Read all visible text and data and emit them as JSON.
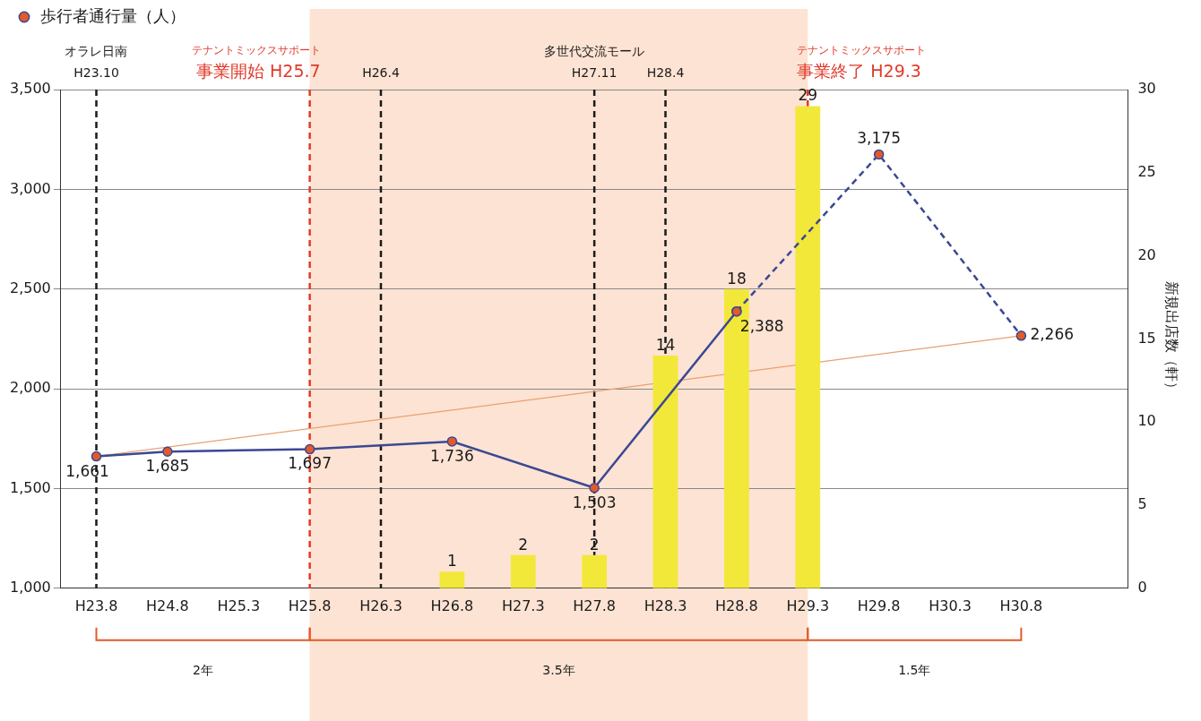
{
  "chart_data": {
    "type": "bar",
    "categories": [
      "H23.8",
      "H24.8",
      "H25.3",
      "H25.8",
      "H26.3",
      "H26.8",
      "H27.3",
      "H27.8",
      "H28.3",
      "H28.8",
      "H29.3",
      "H29.8",
      "H30.3",
      "H30.8",
      null
    ],
    "ylim": [
      1000,
      3500
    ],
    "yticks": [
      {
        "value": 1000,
        "label": "1,000"
      },
      {
        "value": 1500,
        "label": "1,500"
      },
      {
        "value": 2000,
        "label": "2,000"
      },
      {
        "value": 2500,
        "label": "2,500"
      },
      {
        "value": 3000,
        "label": "3,000"
      },
      {
        "value": 3500,
        "label": "3,500"
      }
    ],
    "y2lim": [
      0,
      30
    ],
    "y2ticks": [
      0,
      5,
      10,
      15,
      20,
      25,
      30
    ],
    "y2label": "新規出店数（軒）",
    "grid": "y",
    "legend": "top left",
    "data_labels": true,
    "marker": "circle",
    "series": [
      {
        "axis": "y2",
        "color": "#f2e83a",
        "values": [
          null,
          null,
          null,
          null,
          null,
          1,
          2,
          2,
          14,
          18,
          29,
          null,
          null,
          null,
          null
        ]
      },
      {
        "type": "line",
        "name": "歩行者通行量（人）",
        "color": "#3b4894",
        "values": [
          1661,
          1685,
          null,
          1697,
          null,
          1736,
          null,
          1503,
          null,
          2388,
          null,
          null,
          null,
          null,
          null
        ],
        "value_labels": [
          "1,661",
          "1,685",
          null,
          "1,697",
          null,
          "1,736",
          null,
          "1,503",
          null,
          "2,388",
          null,
          null,
          null,
          null,
          null
        ]
      },
      {
        "type": "line",
        "color": "#3b4894",
        "line_style": "dashed",
        "values": [
          null,
          null,
          null,
          null,
          null,
          null,
          null,
          null,
          null,
          2388,
          null,
          3175,
          null,
          2266,
          null
        ],
        "value_labels": [
          null,
          null,
          null,
          null,
          null,
          null,
          null,
          null,
          null,
          null,
          null,
          "3,175",
          null,
          "2,266",
          null
        ]
      },
      {
        "type": "line",
        "color": "#e8a070",
        "marker": "none",
        "values": [
          1661,
          null,
          null,
          null,
          null,
          null,
          null,
          null,
          null,
          null,
          null,
          null,
          null,
          2266,
          null
        ],
        "value_labels": [
          null,
          null,
          null,
          null,
          null,
          null,
          null,
          null,
          null,
          null,
          null,
          null,
          null,
          null,
          null
        ]
      }
    ],
    "ref_lines": [
      {
        "axis": "x",
        "value": "H23.8",
        "label": "オラレ日南\nH23.10",
        "color": "#1a1a1a",
        "line_style": "dashed"
      },
      {
        "axis": "x",
        "value": "H25.8",
        "label": "事業開始 H25.7",
        "color": "#e03a2a",
        "line_style": "dashed"
      },
      {
        "axis": "x",
        "value": "H26.3",
        "label": "H26.4",
        "color": "#1a1a1a",
        "line_style": "dashed"
      },
      {
        "axis": "x",
        "value": "H27.8",
        "label": "多世代交流モール\nH27.11",
        "color": "#1a1a1a",
        "line_style": "dashed"
      },
      {
        "axis": "x",
        "value": "H28.3",
        "label": "H28.4",
        "color": "#1a1a1a",
        "line_style": "dashed"
      },
      {
        "axis": "x",
        "value": "H29.3",
        "label": "事業終了 H29.3",
        "color": "#e03a2a",
        "line_style": "dashed"
      }
    ],
    "bands": [
      {
        "axis": "x",
        "from": "H25.8",
        "to": "H29.3",
        "color": "#fde3d3"
      }
    ],
    "annotations": [
      "テナントミックスサポート",
      "テナントミックスサポート",
      "2年",
      "3.5年",
      "1.5年"
    ]
  }
}
